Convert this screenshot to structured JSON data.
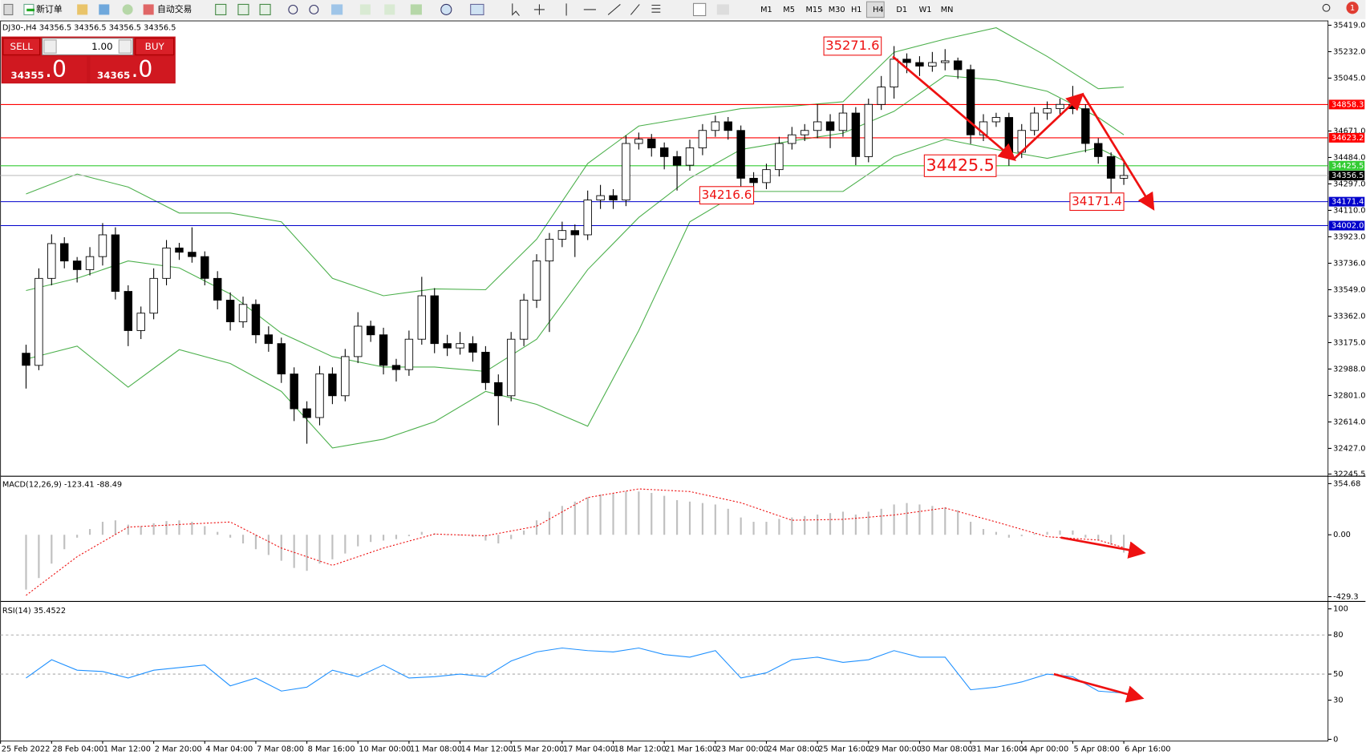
{
  "toolbar": {
    "new_order": "新订单",
    "auto_trading": "自动交易",
    "timeframes": [
      "M1",
      "M5",
      "M15",
      "M30",
      "H1",
      "H4",
      "D1",
      "W1",
      "MN"
    ],
    "badge": "1"
  },
  "trade_panel": {
    "sell": "SELL",
    "buy": "BUY",
    "lots": "1.00",
    "bid_main": "34355",
    "bid_tail": ".0",
    "ask_main": "34365",
    "ask_tail": ".0"
  },
  "chart_data": [
    {
      "type": "candlestick",
      "title": "DJ30-,H4  34356.5 34356.5 34356.5 34356.5",
      "xlim": [
        -2,
        102
      ],
      "xticks": [
        {
          "value": -2,
          "label": "25 Feb 2022"
        },
        {
          "value": 2,
          "label": "28 Feb 04:00"
        },
        {
          "value": 6,
          "label": "1 Mar 12:00"
        },
        {
          "value": 10,
          "label": "2 Mar 20:00"
        },
        {
          "value": 14,
          "label": "4 Mar 04:00"
        },
        {
          "value": 18,
          "label": "7 Mar 08:00"
        },
        {
          "value": 22,
          "label": "8 Mar 16:00"
        },
        {
          "value": 26,
          "label": "10 Mar 00:00"
        },
        {
          "value": 30,
          "label": "11 Mar 08:00"
        },
        {
          "value": 34,
          "label": "14 Mar 12:00"
        },
        {
          "value": 38,
          "label": "15 Mar 20:00"
        },
        {
          "value": 42,
          "label": "17 Mar 04:00"
        },
        {
          "value": 46,
          "label": "18 Mar 12:00"
        },
        {
          "value": 50,
          "label": "21 Mar 16:00"
        },
        {
          "value": 54,
          "label": "23 Mar 00:00"
        },
        {
          "value": 58,
          "label": "24 Mar 08:00"
        },
        {
          "value": 62,
          "label": "25 Mar 16:00"
        },
        {
          "value": 66,
          "label": "29 Mar 00:00"
        },
        {
          "value": 70,
          "label": "30 Mar 08:00"
        },
        {
          "value": 74,
          "label": "31 Mar 16:00"
        },
        {
          "value": 78,
          "label": "4 Apr 00:00"
        },
        {
          "value": 82,
          "label": "5 Apr 08:00"
        },
        {
          "value": 86,
          "label": "6 Apr 16:00"
        }
      ],
      "ylim": [
        32245.5,
        35419
      ],
      "yticks": [
        {
          "value": 35419,
          "label": "35419.0"
        },
        {
          "value": 35232,
          "label": "35232.0"
        },
        {
          "value": 35045,
          "label": "35045.0"
        },
        {
          "value": 34671,
          "label": "34671.0"
        },
        {
          "value": 34484,
          "label": "34484.0"
        },
        {
          "value": 34297,
          "label": "34297.0"
        },
        {
          "value": 34110,
          "label": "34110.0"
        },
        {
          "value": 33923,
          "label": "33923.0"
        },
        {
          "value": 33736,
          "label": "33736.0"
        },
        {
          "value": 33549,
          "label": "33549.0"
        },
        {
          "value": 33362,
          "label": "33362.0"
        },
        {
          "value": 33175,
          "label": "33175.0"
        },
        {
          "value": 32988,
          "label": "32988.0"
        },
        {
          "value": 32801,
          "label": "32801.0"
        },
        {
          "value": 32614,
          "label": "32614.0"
        },
        {
          "value": 32427,
          "label": "32427.0"
        },
        32245.5
      ],
      "open": [
        33100,
        33014,
        33629,
        33875,
        33752,
        33691,
        33783,
        33937,
        33537,
        33260,
        33383,
        33629,
        33844,
        33814,
        33783,
        33629,
        33475,
        33322,
        33445,
        33230,
        33168,
        32953,
        32707,
        32645,
        32953,
        32799,
        33076,
        33291,
        33230,
        33014,
        32984,
        33199,
        33506,
        33168,
        33137,
        33168,
        33107,
        32892,
        32799,
        33199,
        33475,
        33752,
        33906,
        33967,
        33937,
        34183,
        34214,
        34183,
        34583,
        34614,
        34552,
        34490,
        34429,
        34552,
        34675,
        34736,
        34675,
        34337,
        34306,
        34398,
        34583,
        34644,
        34675,
        34736,
        34675,
        34798,
        34490,
        34859,
        34982,
        35179,
        35155,
        35130,
        35155,
        35167,
        35105,
        34644,
        34736,
        34767,
        34521,
        34675,
        34798,
        34829,
        34859,
        34829,
        34583,
        34490,
        34337
      ],
      "high": [
        33160,
        33700,
        33940,
        33920,
        33780,
        33850,
        34020,
        33990,
        33580,
        33430,
        33700,
        33900,
        33880,
        33990,
        33820,
        33680,
        33530,
        33500,
        33480,
        33290,
        33210,
        33000,
        32760,
        33010,
        33000,
        33130,
        33390,
        33330,
        33280,
        33060,
        33260,
        33640,
        33560,
        33230,
        33250,
        33220,
        33150,
        32950,
        33250,
        33520,
        33800,
        33950,
        34030,
        34010,
        34250,
        34290,
        34260,
        34640,
        34660,
        34650,
        34590,
        34530,
        34610,
        34720,
        34780,
        34770,
        34710,
        34380,
        34440,
        34630,
        34700,
        34720,
        34860,
        34790,
        34860,
        34840,
        34900,
        35060,
        35271.6,
        35220,
        35200,
        35230,
        35250,
        35190,
        35140,
        34790,
        34800,
        34800,
        34720,
        34840,
        34880,
        34900,
        34990,
        34860,
        34620,
        34520,
        34470
      ],
      "low": [
        32850,
        32980,
        33580,
        33700,
        33600,
        33650,
        33720,
        33480,
        33150,
        33200,
        33340,
        33580,
        33760,
        33740,
        33580,
        33410,
        33260,
        33280,
        33170,
        33110,
        32890,
        32620,
        32460,
        32590,
        32740,
        32760,
        33030,
        33180,
        32950,
        32900,
        32940,
        33160,
        33100,
        33080,
        33090,
        33040,
        32840,
        32590,
        32760,
        33150,
        33420,
        33250,
        33850,
        33780,
        33900,
        34120,
        34120,
        34140,
        34540,
        34490,
        34400,
        34250,
        34390,
        34500,
        34630,
        34610,
        34216.6,
        34240,
        34260,
        34350,
        34540,
        34600,
        34620,
        34550,
        34630,
        34430,
        34450,
        34820,
        34900,
        35080,
        35060,
        35090,
        35100,
        35040,
        34580,
        34600,
        34700,
        34425.5,
        34480,
        34640,
        34750,
        34780,
        34790,
        34520,
        34440,
        34171.4,
        34290
      ],
      "close": [
        33014,
        33629,
        33875,
        33752,
        33691,
        33783,
        33937,
        33537,
        33260,
        33383,
        33629,
        33844,
        33814,
        33783,
        33629,
        33475,
        33322,
        33445,
        33230,
        33168,
        32953,
        32707,
        32645,
        32953,
        32799,
        33076,
        33291,
        33230,
        33014,
        32984,
        33199,
        33506,
        33168,
        33137,
        33168,
        33107,
        32892,
        32799,
        33199,
        33475,
        33752,
        33906,
        33967,
        33937,
        34183,
        34214,
        34183,
        34583,
        34614,
        34552,
        34490,
        34429,
        34552,
        34675,
        34736,
        34675,
        34337,
        34306,
        34398,
        34583,
        34644,
        34675,
        34736,
        34675,
        34798,
        34490,
        34859,
        34982,
        35179,
        35155,
        35130,
        35155,
        35167,
        35105,
        34644,
        34736,
        34767,
        34521,
        34675,
        34798,
        34829,
        34859,
        34829,
        34583,
        34490,
        34337,
        34356.5
      ],
      "bands": {
        "x": [
          0,
          4,
          8,
          12,
          16,
          20,
          24,
          28,
          32,
          36,
          40,
          44,
          48,
          52,
          56,
          60,
          64,
          68,
          72,
          76,
          80,
          84,
          86
        ],
        "upper": [
          34226,
          34367,
          34275,
          34091,
          34091,
          34029,
          33629,
          33506,
          33555,
          33549,
          33906,
          34441,
          34706,
          34767,
          34829,
          34847,
          34878,
          35228,
          35321,
          35401,
          35198,
          34970,
          34982
        ],
        "middle": [
          33543,
          33629,
          33752,
          33703,
          33519,
          33242,
          33076,
          33002,
          33002,
          32971,
          33199,
          33691,
          34060,
          34337,
          34540,
          34601,
          34656,
          34810,
          35062,
          35031,
          34952,
          34767,
          34644
        ],
        "lower": [
          33058,
          33150,
          32860,
          33125,
          33027,
          32830,
          32430,
          32492,
          32615,
          32830,
          32738,
          32584,
          33260,
          34029,
          34244,
          34244,
          34244,
          34490,
          34613,
          34540,
          34478,
          34552,
          34460
        ]
      },
      "levels": [
        {
          "value": 34858.3,
          "color": "#ff0000"
        },
        {
          "value": 34623.2,
          "color": "#ff0000"
        },
        {
          "value": 34425.5,
          "color": "#33cc33"
        },
        {
          "value": 34171.4,
          "color": "#0000cc"
        },
        {
          "value": 34002,
          "label": "34002.0",
          "color": "#0000cc"
        }
      ],
      "current": {
        "value": 34356.5,
        "color": "#c0c0c0"
      },
      "annotations": [
        {
          "value": 35271.6,
          "x": 67
        },
        {
          "value": 34425.5,
          "x": 76
        },
        {
          "value": 34216.6,
          "x": 57
        },
        {
          "value": 34171.4,
          "x": 86
        }
      ]
    },
    {
      "type": "macd",
      "title": "MACD(12,26,9) -123.41 -88.49",
      "ylim": [
        -429.3,
        354.68
      ],
      "yticks": [
        354.68,
        {
          "value": 0,
          "label": "0.00"
        },
        -429.3
      ],
      "histogram": [
        -380,
        -300,
        -200,
        -100,
        -20,
        40,
        90,
        100,
        70,
        60,
        80,
        95,
        100,
        90,
        60,
        20,
        -20,
        -60,
        -100,
        -140,
        -180,
        -230,
        -250,
        -200,
        -170,
        -130,
        -80,
        -50,
        -40,
        -30,
        -10,
        20,
        10,
        0,
        -5,
        -15,
        -40,
        -60,
        -30,
        30,
        100,
        160,
        200,
        230,
        260,
        280,
        285,
        300,
        300,
        290,
        270,
        240,
        230,
        220,
        210,
        180,
        120,
        90,
        90,
        110,
        120,
        130,
        140,
        150,
        160,
        140,
        160,
        180,
        210,
        220,
        210,
        200,
        190,
        170,
        90,
        40,
        20,
        -20,
        -10,
        10,
        20,
        30,
        30,
        -20,
        -40,
        -70,
        -123.41
      ],
      "signal_x": [
        0,
        4,
        8,
        12,
        16,
        20,
        24,
        28,
        32,
        36,
        40,
        44,
        48,
        52,
        56,
        60,
        64,
        68,
        72,
        76,
        80,
        84,
        86
      ],
      "signal": [
        -420,
        -152,
        53,
        71,
        89,
        -92,
        -212,
        -92,
        5,
        -7,
        59,
        258,
        318,
        300,
        222,
        101,
        107,
        137,
        186,
        89,
        -13,
        -37,
        -88.49
      ]
    },
    {
      "type": "rsi",
      "title": "RSI(14) 35.4522",
      "ylim": [
        0,
        100
      ],
      "yticks": [
        100,
        80,
        50,
        30,
        0
      ],
      "levels": [
        80,
        50
      ],
      "x": [
        0,
        2,
        4,
        6,
        8,
        10,
        12,
        14,
        16,
        18,
        20,
        22,
        24,
        26,
        28,
        30,
        32,
        34,
        36,
        38,
        40,
        42,
        44,
        46,
        48,
        50,
        52,
        54,
        56,
        58,
        60,
        62,
        64,
        66,
        68,
        70,
        72,
        74,
        76,
        78,
        80,
        82,
        84,
        86
      ],
      "values": [
        47,
        61,
        53,
        52,
        47,
        53,
        55,
        57,
        41,
        47,
        37,
        40,
        53,
        48,
        57,
        47,
        48,
        50,
        48,
        60,
        67,
        70,
        68,
        67,
        70,
        65,
        63,
        68,
        47,
        51,
        61,
        63,
        59,
        61,
        68,
        63,
        63,
        38,
        40,
        44,
        50,
        48,
        37,
        35.4522
      ]
    }
  ]
}
